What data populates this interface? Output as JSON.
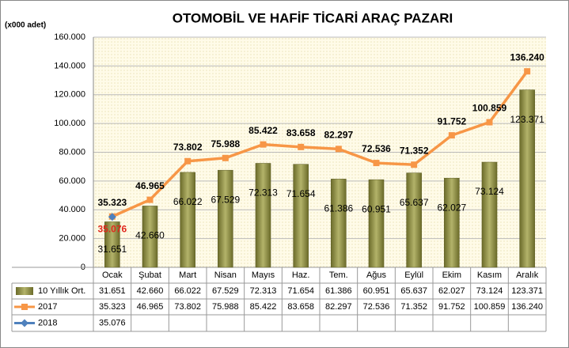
{
  "chart_data": {
    "type": "bar-line",
    "title": "OTOMOBİL  VE HAFİF TİCARİ ARAÇ PAZARI",
    "y_label": "(x000 adet)",
    "categories": [
      "Ocak",
      "Şubat",
      "Mart",
      "Nisan",
      "Mayıs",
      "Haz.",
      "Tem.",
      "Ağus",
      "Eylül",
      "Ekim",
      "Kasım",
      "Aralık"
    ],
    "series": [
      {
        "name": "10 Yıllık Ort.",
        "kind": "bar",
        "color": "#8c8c3c",
        "values": [
          31651,
          42660,
          66022,
          67529,
          72313,
          71654,
          61386,
          60951,
          65637,
          62027,
          73124,
          123371
        ],
        "value_labels": [
          "31.651",
          "42.660",
          "66.022",
          "67.529",
          "72.313",
          "71.654",
          "61.386",
          "60.951",
          "65.637",
          "62.027",
          "73.124",
          "123.371"
        ]
      },
      {
        "name": "2017",
        "kind": "line",
        "color": "#f79646",
        "values": [
          35323,
          46965,
          73802,
          75988,
          85422,
          83658,
          82297,
          72536,
          71352,
          91752,
          100859,
          136240
        ],
        "value_labels": [
          "35.323",
          "46.965",
          "73.802",
          "75.988",
          "85.422",
          "83.658",
          "82.297",
          "72.536",
          "71.352",
          "91.752",
          "100.859",
          "136.240"
        ]
      },
      {
        "name": "2018",
        "kind": "line",
        "color": "#4f81bd",
        "values": [
          35076,
          null,
          null,
          null,
          null,
          null,
          null,
          null,
          null,
          null,
          null,
          null
        ],
        "value_labels": [
          "35.076",
          null,
          null,
          null,
          null,
          null,
          null,
          null,
          null,
          null,
          null,
          null
        ]
      }
    ],
    "ylim": [
      0,
      160000
    ],
    "yticks": [
      0,
      {
        "value": 20000,
        "label": "20.000"
      },
      {
        "value": 40000,
        "label": "40.000"
      },
      {
        "value": 60000,
        "label": "60.000"
      },
      {
        "value": 80000,
        "label": "80.000"
      },
      {
        "value": 100000,
        "label": "100.000"
      },
      {
        "value": 120000,
        "label": "120.000"
      },
      {
        "value": 140000,
        "label": "140.000"
      },
      {
        "value": 160000,
        "label": "160.000"
      }
    ],
    "grid": true
  }
}
